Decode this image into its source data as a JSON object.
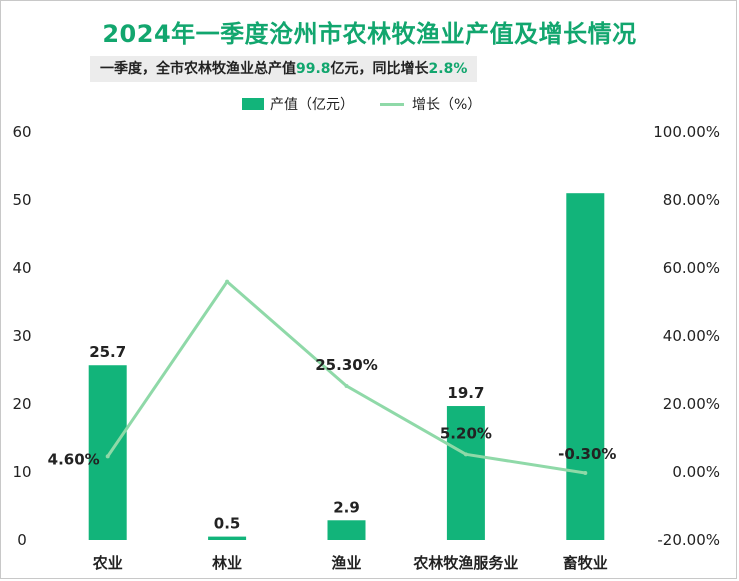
{
  "title": "2024年一季度沧州市农林牧渔业产值及增长情况",
  "subtitle": {
    "prefix": "一季度，全市农林牧渔业总产值",
    "total_value": "99.8",
    "mid": "亿元，同比增长",
    "growth": "2.8%"
  },
  "colors": {
    "bar": "#12b47a",
    "line": "#8fd9a8",
    "title": "#12a66e"
  },
  "chart_data": {
    "type": "bar",
    "categories": [
      "农业",
      "林业",
      "渔业",
      "农林牧渔服务业",
      "畜牧业"
    ],
    "series": [
      {
        "name": "产值（亿元）",
        "type": "bar",
        "axis": "left",
        "values": [
          25.7,
          0.5,
          2.9,
          19.7,
          51.0
        ],
        "labels": [
          "25.7",
          "0.5",
          "2.9",
          "19.7",
          ""
        ]
      },
      {
        "name": "增长（%）",
        "type": "line",
        "axis": "right",
        "values": [
          4.6,
          56.0,
          25.3,
          5.2,
          -0.3
        ],
        "labels": [
          "4.60%",
          "",
          "25.30%",
          "5.20%",
          "-0.30%"
        ]
      }
    ],
    "y_left": {
      "min": 0,
      "max": 60,
      "ticks": [
        0,
        10,
        20,
        30,
        40,
        50,
        60
      ]
    },
    "y_right": {
      "min": -20,
      "max": 100,
      "ticks": [
        -20,
        0,
        20,
        40,
        60,
        80,
        100
      ],
      "tick_labels": [
        "-20.00%",
        "0.00%",
        "20.00%",
        "40.00%",
        "60.00%",
        "80.00%",
        "100.00%"
      ]
    },
    "legend_position": "top-center",
    "grid": false
  }
}
